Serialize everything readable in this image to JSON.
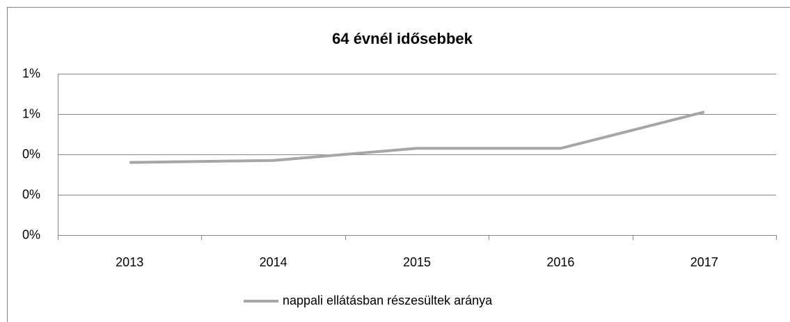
{
  "chart_data": {
    "type": "line",
    "title": "64 évnél idősebbek",
    "categories": [
      "2013",
      "2014",
      "2015",
      "2016",
      "2017"
    ],
    "series": [
      {
        "name": "nappali ellátásban részesültek aránya",
        "color": "#a6a6a6",
        "values": [
          0.36,
          0.37,
          0.43,
          0.43,
          0.61
        ]
      }
    ],
    "ylim": [
      0,
      0.8
    ],
    "yticks": [
      {
        "value": 0,
        "label": "0%"
      },
      {
        "value": 0.2,
        "label": "0%"
      },
      {
        "value": 0.4,
        "label": "0%"
      },
      {
        "value": 0.6,
        "label": "1%"
      },
      {
        "value": 0.8,
        "label": "1%"
      }
    ],
    "grid": true,
    "legend": "bottom"
  }
}
